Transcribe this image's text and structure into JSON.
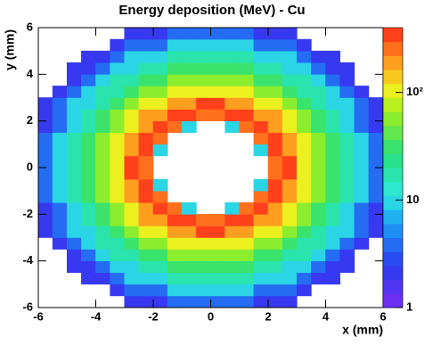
{
  "chart_data": {
    "type": "contour",
    "title": "Energy deposition (MeV) - Cu",
    "xlabel": "x (mm)",
    "ylabel": "y (mm)",
    "xlim": [
      -6,
      6
    ],
    "ylim": [
      -6,
      6
    ],
    "xticks": [
      -6,
      -4,
      -2,
      0,
      2,
      4,
      6
    ],
    "yticks": [
      -6,
      -4,
      -2,
      0,
      2,
      4,
      6
    ],
    "zlim": [
      1,
      400
    ],
    "zlog": true,
    "zticks": [
      1,
      10,
      {
        "value": 100,
        "label": "10²"
      }
    ],
    "x": [
      -5.75,
      -5.25,
      -4.75,
      -4.25,
      -3.75,
      -3.25,
      -2.75,
      -2.25,
      -1.75,
      -1.25,
      -0.75,
      -0.25,
      0.25,
      0.75,
      1.25,
      1.75,
      2.25,
      2.75,
      3.25,
      3.75,
      4.25,
      4.75,
      5.25,
      5.75
    ],
    "y": [
      -5.75,
      -5.25,
      -4.75,
      -4.25,
      -3.75,
      -3.25,
      -2.75,
      -2.25,
      -1.75,
      -1.25,
      -0.75,
      -0.25,
      0.25,
      0.75,
      1.25,
      1.75,
      2.25,
      2.75,
      3.25,
      3.75,
      4.25,
      4.75,
      5.25,
      5.75
    ],
    "z": [
      [
        null,
        null,
        null,
        null,
        null,
        null,
        2,
        2,
        2,
        4,
        4,
        4,
        4,
        4,
        4,
        2,
        2,
        2,
        null,
        null,
        null,
        null,
        null,
        null
      ],
      [
        null,
        null,
        null,
        null,
        null,
        2,
        4,
        4,
        4,
        10,
        10,
        10,
        10,
        10,
        10,
        4,
        4,
        4,
        2,
        null,
        null,
        null,
        null,
        null
      ],
      [
        null,
        null,
        null,
        2,
        2,
        4,
        10,
        10,
        10,
        18,
        18,
        18,
        18,
        18,
        18,
        10,
        10,
        10,
        4,
        2,
        2,
        null,
        null,
        null
      ],
      [
        null,
        null,
        2,
        2,
        4,
        10,
        10,
        18,
        18,
        30,
        30,
        30,
        30,
        30,
        30,
        18,
        18,
        10,
        10,
        4,
        2,
        2,
        null,
        null
      ],
      [
        null,
        null,
        2,
        4,
        10,
        18,
        18,
        30,
        30,
        50,
        50,
        50,
        50,
        50,
        50,
        30,
        30,
        18,
        18,
        10,
        4,
        2,
        null,
        null
      ],
      [
        null,
        2,
        4,
        10,
        18,
        18,
        30,
        50,
        50,
        100,
        100,
        100,
        100,
        100,
        100,
        50,
        50,
        30,
        18,
        18,
        10,
        4,
        2,
        null
      ],
      [
        2,
        4,
        10,
        10,
        18,
        30,
        50,
        100,
        100,
        200,
        200,
        350,
        350,
        200,
        200,
        100,
        100,
        50,
        30,
        18,
        10,
        10,
        4,
        2
      ],
      [
        2,
        4,
        10,
        18,
        30,
        50,
        100,
        200,
        200,
        350,
        350,
        250,
        250,
        350,
        350,
        200,
        200,
        100,
        50,
        30,
        18,
        10,
        4,
        2
      ],
      [
        2,
        4,
        10,
        18,
        30,
        50,
        100,
        200,
        350,
        250,
        10,
        null,
        null,
        10,
        250,
        350,
        200,
        100,
        50,
        30,
        18,
        10,
        4,
        2
      ],
      [
        4,
        10,
        18,
        30,
        50,
        100,
        200,
        350,
        250,
        null,
        null,
        null,
        null,
        null,
        null,
        250,
        350,
        200,
        100,
        50,
        30,
        18,
        10,
        4
      ],
      [
        4,
        10,
        18,
        30,
        50,
        100,
        200,
        350,
        10,
        null,
        null,
        null,
        null,
        null,
        null,
        10,
        350,
        200,
        100,
        50,
        30,
        18,
        10,
        4
      ],
      [
        4,
        10,
        18,
        30,
        50,
        100,
        350,
        250,
        null,
        null,
        null,
        null,
        null,
        null,
        null,
        null,
        250,
        350,
        100,
        50,
        30,
        18,
        10,
        4
      ],
      [
        4,
        10,
        18,
        30,
        50,
        100,
        350,
        250,
        null,
        null,
        null,
        null,
        null,
        null,
        null,
        null,
        250,
        350,
        100,
        50,
        30,
        18,
        10,
        4
      ],
      [
        4,
        10,
        18,
        30,
        50,
        100,
        200,
        350,
        10,
        null,
        null,
        null,
        null,
        null,
        null,
        10,
        350,
        200,
        100,
        50,
        30,
        18,
        10,
        4
      ],
      [
        4,
        10,
        18,
        30,
        50,
        100,
        200,
        350,
        250,
        null,
        null,
        null,
        null,
        null,
        null,
        250,
        350,
        200,
        100,
        50,
        30,
        18,
        10,
        4
      ],
      [
        2,
        4,
        10,
        18,
        30,
        50,
        100,
        200,
        350,
        250,
        10,
        null,
        null,
        10,
        250,
        350,
        200,
        100,
        50,
        30,
        18,
        10,
        4,
        2
      ],
      [
        2,
        4,
        10,
        18,
        30,
        50,
        100,
        200,
        200,
        350,
        350,
        250,
        250,
        350,
        350,
        200,
        200,
        100,
        50,
        30,
        18,
        10,
        4,
        2
      ],
      [
        2,
        4,
        10,
        10,
        18,
        30,
        50,
        100,
        100,
        200,
        200,
        350,
        350,
        200,
        200,
        100,
        100,
        50,
        30,
        18,
        10,
        10,
        4,
        2
      ],
      [
        null,
        2,
        4,
        10,
        18,
        18,
        30,
        50,
        50,
        100,
        100,
        100,
        100,
        100,
        100,
        50,
        50,
        30,
        18,
        18,
        10,
        4,
        2,
        null
      ],
      [
        null,
        null,
        2,
        4,
        10,
        18,
        18,
        30,
        30,
        50,
        50,
        50,
        50,
        50,
        50,
        30,
        30,
        18,
        18,
        10,
        4,
        2,
        null,
        null
      ],
      [
        null,
        null,
        2,
        2,
        4,
        10,
        10,
        18,
        18,
        30,
        30,
        30,
        30,
        30,
        30,
        18,
        18,
        10,
        10,
        4,
        2,
        2,
        null,
        null
      ],
      [
        null,
        null,
        null,
        2,
        2,
        4,
        10,
        10,
        10,
        18,
        18,
        18,
        18,
        18,
        18,
        10,
        10,
        10,
        4,
        2,
        2,
        null,
        null,
        null
      ],
      [
        null,
        null,
        null,
        null,
        null,
        2,
        4,
        4,
        4,
        10,
        10,
        10,
        10,
        10,
        10,
        4,
        4,
        4,
        2,
        null,
        null,
        null,
        null,
        null
      ],
      [
        null,
        null,
        null,
        null,
        null,
        null,
        2,
        2,
        2,
        4,
        4,
        4,
        4,
        4,
        4,
        2,
        2,
        2,
        null,
        null,
        null,
        null,
        null,
        null
      ]
    ]
  }
}
